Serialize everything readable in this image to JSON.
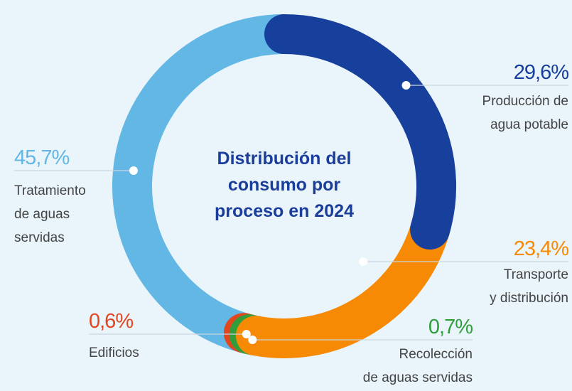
{
  "chart_data": {
    "type": "donut",
    "title": "Distribución del\nconsumo por\nproceso en 2024",
    "categories": [
      "Producción de\nagua potable",
      "Transporte\ny distribución",
      "Recolección\nde aguas servidas",
      "Edificios",
      "Tratamiento\nde aguas\nservidas"
    ],
    "values": [
      29.6,
      23.4,
      0.7,
      0.6,
      45.7
    ],
    "value_labels": [
      "29,6%",
      "23,4%",
      "0,7%",
      "0,6%",
      "45,7%"
    ],
    "colors": [
      "#173f9c",
      "#f78a05",
      "#2f9e3b",
      "#e1471f",
      "#62b7e5"
    ]
  }
}
